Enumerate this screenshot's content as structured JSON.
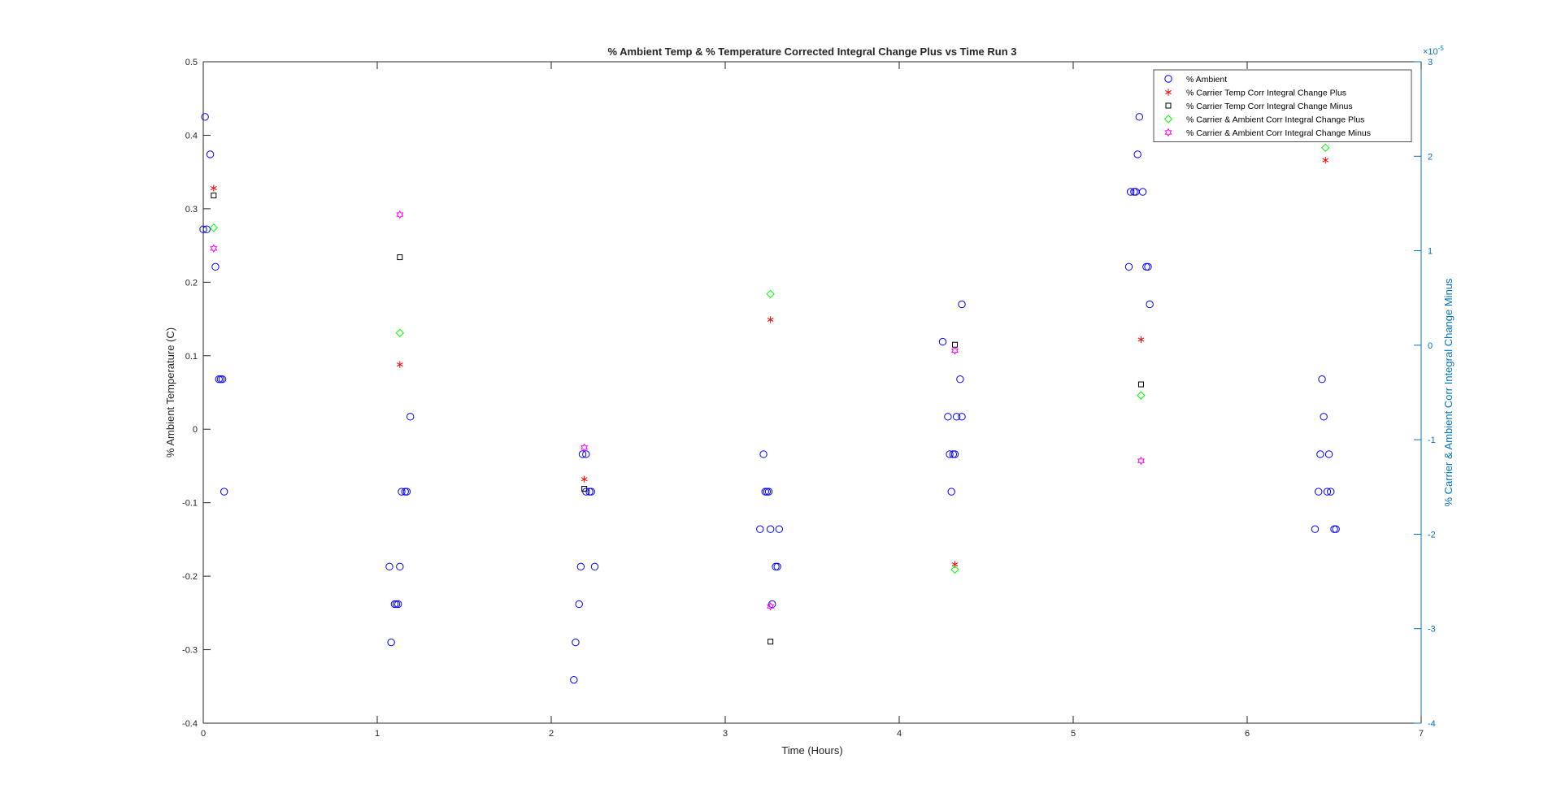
{
  "chart_data": {
    "type": "scatter",
    "title": "% Ambient Temp & % Temperature Corrected Integral Change Plus vs Time Run 3",
    "xlabel": "Time (Hours)",
    "ylabel": "% Ambient Temperature (C)",
    "ylabel_right": "% Carrier & Ambient Corr Integral Change Minus",
    "right_exponent_base": "×10",
    "right_exponent_power": "-5",
    "xlim": [
      0,
      7
    ],
    "ylim": [
      -0.4,
      0.5
    ],
    "ylim_right": [
      -4,
      3
    ],
    "xticks": [
      0,
      1,
      2,
      3,
      4,
      5,
      6,
      7
    ],
    "xtick_labels": [
      "0",
      "1",
      "2",
      "3",
      "4",
      "5",
      "6",
      "7"
    ],
    "yticks": [
      -0.4,
      -0.3,
      -0.2,
      -0.1,
      0,
      0.1,
      0.2,
      0.3,
      0.4,
      0.5
    ],
    "ytick_labels": [
      "-0.4",
      "-0.3",
      "-0.2",
      "-0.1",
      "0",
      "0.1",
      "0.2",
      "0.3",
      "0.4",
      "0.5"
    ],
    "yticks_right": [
      -4,
      -3,
      -2,
      -1,
      0,
      1,
      2,
      3
    ],
    "ytick_labels_right": [
      "-4",
      "-3",
      "-2",
      "-1",
      "0",
      "1",
      "2",
      "3"
    ],
    "grid": false,
    "legend_position": "top-right",
    "series": [
      {
        "name": "% Ambient",
        "marker": "circle",
        "color": "#0000FF",
        "axis": "left",
        "points": [
          [
            0.01,
            0.425
          ],
          [
            0.04,
            0.374
          ],
          [
            0.0,
            0.272
          ],
          [
            0.02,
            0.272
          ],
          [
            0.07,
            0.221
          ],
          [
            0.09,
            0.068
          ],
          [
            0.1,
            0.068
          ],
          [
            0.11,
            0.068
          ],
          [
            0.12,
            -0.085
          ],
          [
            1.07,
            -0.187
          ],
          [
            1.13,
            -0.187
          ],
          [
            1.08,
            -0.29
          ],
          [
            1.1,
            -0.238
          ],
          [
            1.11,
            -0.238
          ],
          [
            1.12,
            -0.238
          ],
          [
            1.14,
            -0.085
          ],
          [
            1.16,
            -0.085
          ],
          [
            1.17,
            -0.085
          ],
          [
            1.19,
            0.017
          ],
          [
            2.13,
            -0.341
          ],
          [
            2.14,
            -0.29
          ],
          [
            2.16,
            -0.238
          ],
          [
            2.17,
            -0.187
          ],
          [
            2.25,
            -0.187
          ],
          [
            2.18,
            -0.034
          ],
          [
            2.2,
            -0.034
          ],
          [
            2.2,
            -0.085
          ],
          [
            2.22,
            -0.085
          ],
          [
            2.23,
            -0.085
          ],
          [
            3.22,
            -0.034
          ],
          [
            3.2,
            -0.136
          ],
          [
            3.26,
            -0.136
          ],
          [
            3.31,
            -0.136
          ],
          [
            3.23,
            -0.085
          ],
          [
            3.24,
            -0.085
          ],
          [
            3.25,
            -0.085
          ],
          [
            3.27,
            -0.238
          ],
          [
            3.29,
            -0.187
          ],
          [
            3.3,
            -0.187
          ],
          [
            4.25,
            0.119
          ],
          [
            4.36,
            0.17
          ],
          [
            4.28,
            0.017
          ],
          [
            4.33,
            0.017
          ],
          [
            4.36,
            0.017
          ],
          [
            4.29,
            -0.034
          ],
          [
            4.31,
            -0.034
          ],
          [
            4.32,
            -0.034
          ],
          [
            4.35,
            0.068
          ],
          [
            4.3,
            -0.085
          ],
          [
            5.38,
            0.425
          ],
          [
            5.37,
            0.374
          ],
          [
            5.33,
            0.323
          ],
          [
            5.35,
            0.323
          ],
          [
            5.36,
            0.323
          ],
          [
            5.4,
            0.323
          ],
          [
            5.32,
            0.221
          ],
          [
            5.42,
            0.221
          ],
          [
            5.43,
            0.221
          ],
          [
            5.44,
            0.17
          ],
          [
            6.43,
            0.068
          ],
          [
            6.44,
            0.017
          ],
          [
            6.42,
            -0.034
          ],
          [
            6.47,
            -0.034
          ],
          [
            6.41,
            -0.085
          ],
          [
            6.46,
            -0.085
          ],
          [
            6.48,
            -0.085
          ],
          [
            6.39,
            -0.136
          ],
          [
            6.5,
            -0.136
          ],
          [
            6.51,
            -0.136
          ]
        ]
      },
      {
        "name": "% Carrier Temp Corr Integral Change Plus",
        "marker": "asterisk",
        "color": "#FF0000",
        "axis": "left",
        "points": [
          [
            0.06,
            0.328
          ],
          [
            1.13,
            0.088
          ],
          [
            2.19,
            -0.068
          ],
          [
            3.26,
            0.149
          ],
          [
            4.32,
            -0.184
          ],
          [
            5.39,
            0.122
          ],
          [
            6.45,
            0.366
          ]
        ]
      },
      {
        "name": "% Carrier Temp Corr Integral Change Minus",
        "marker": "square",
        "color": "#000000",
        "axis": "left",
        "points": [
          [
            0.06,
            0.318
          ],
          [
            1.13,
            0.234
          ],
          [
            2.19,
            -0.081
          ],
          [
            3.26,
            -0.289
          ],
          [
            4.32,
            0.115
          ],
          [
            5.39,
            0.061
          ]
        ]
      },
      {
        "name": "% Carrier & Ambient Corr Integral Change Plus",
        "marker": "diamond",
        "color": "#00FF00",
        "axis": "left",
        "points": [
          [
            0.06,
            0.274
          ],
          [
            1.13,
            0.131
          ],
          [
            3.26,
            0.184
          ],
          [
            4.32,
            -0.191
          ],
          [
            5.39,
            0.046
          ],
          [
            6.45,
            0.383
          ]
        ]
      },
      {
        "name": "% Carrier & Ambient Corr Integral Change Minus",
        "marker": "hexagram",
        "color": "#FF00FF",
        "axis": "left",
        "points": [
          [
            0.06,
            0.246
          ],
          [
            1.13,
            0.292
          ],
          [
            2.19,
            -0.025
          ],
          [
            3.26,
            -0.241
          ],
          [
            4.32,
            0.107
          ],
          [
            5.39,
            -0.043
          ]
        ]
      }
    ]
  }
}
